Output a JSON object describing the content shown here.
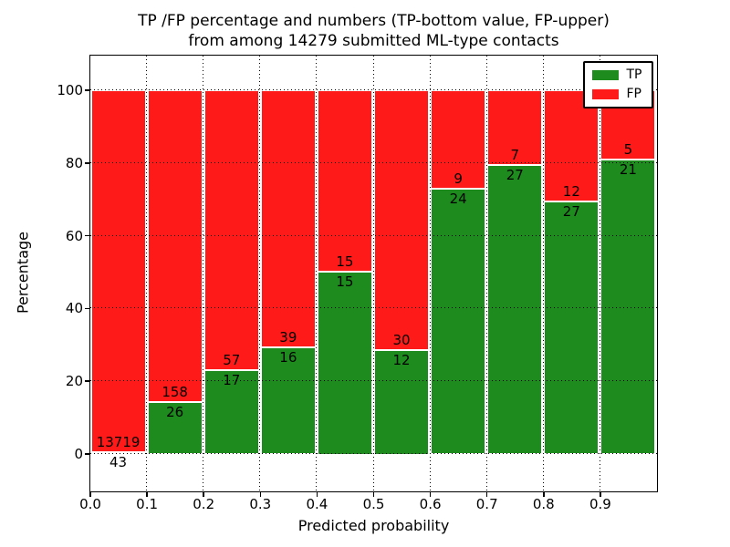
{
  "title": {
    "line1": "TP /FP percentage and numbers (TP-bottom value, FP-upper)",
    "line2": "from among 14279 submitted ML-type contacts"
  },
  "axes": {
    "x_label": "Predicted probability",
    "y_label": "Percentage",
    "x_tick_labels": [
      "0.0",
      "0.1",
      "0.2",
      "0.3",
      "0.4",
      "0.5",
      "0.6",
      "0.7",
      "0.8",
      "0.9"
    ],
    "y_tick_labels": [
      "0",
      "20",
      "40",
      "60",
      "80",
      "100"
    ],
    "y_tick_values": [
      0,
      20,
      40,
      60,
      80,
      100
    ]
  },
  "legend": {
    "items": [
      {
        "label": "TP",
        "color": "#1d8b1d"
      },
      {
        "label": "FP",
        "color": "#ff1a1a"
      }
    ]
  },
  "colors": {
    "tp": "#1d8b1d",
    "fp": "#ff1a1a",
    "grid": "#000000",
    "bar_edge": "#ffffff"
  },
  "chart_data": {
    "type": "bar",
    "stacked": true,
    "normalized_to_percent": true,
    "title": "TP /FP percentage and numbers (TP-bottom value, FP-upper) from among 14279 submitted ML-type contacts",
    "xlabel": "Predicted probability",
    "ylabel": "Percentage",
    "total_contacts": 14279,
    "bins": [
      [
        0.0,
        0.1
      ],
      [
        0.1,
        0.2
      ],
      [
        0.2,
        0.3
      ],
      [
        0.3,
        0.4
      ],
      [
        0.4,
        0.5
      ],
      [
        0.5,
        0.6
      ],
      [
        0.6,
        0.7
      ],
      [
        0.7,
        0.8
      ],
      [
        0.8,
        0.9
      ],
      [
        0.9,
        1.0
      ]
    ],
    "series": [
      {
        "name": "TP",
        "color": "#1d8b1d",
        "counts": [
          43,
          26,
          17,
          16,
          15,
          12,
          24,
          27,
          27,
          21
        ]
      },
      {
        "name": "FP",
        "color": "#ff1a1a",
        "counts": [
          13719,
          158,
          57,
          39,
          15,
          30,
          9,
          7,
          12,
          5
        ]
      }
    ],
    "tp_percent": [
      0.31,
      14.13,
      22.97,
      29.09,
      50.0,
      28.57,
      72.73,
      79.41,
      69.23,
      80.77
    ],
    "xlim": [
      0.0,
      1.0
    ],
    "ylim": [
      -10.5,
      109.6
    ],
    "grid": {
      "style": "dotted",
      "color": "#000000",
      "drawn_over_bars": true
    },
    "legend_position": "upper right"
  }
}
